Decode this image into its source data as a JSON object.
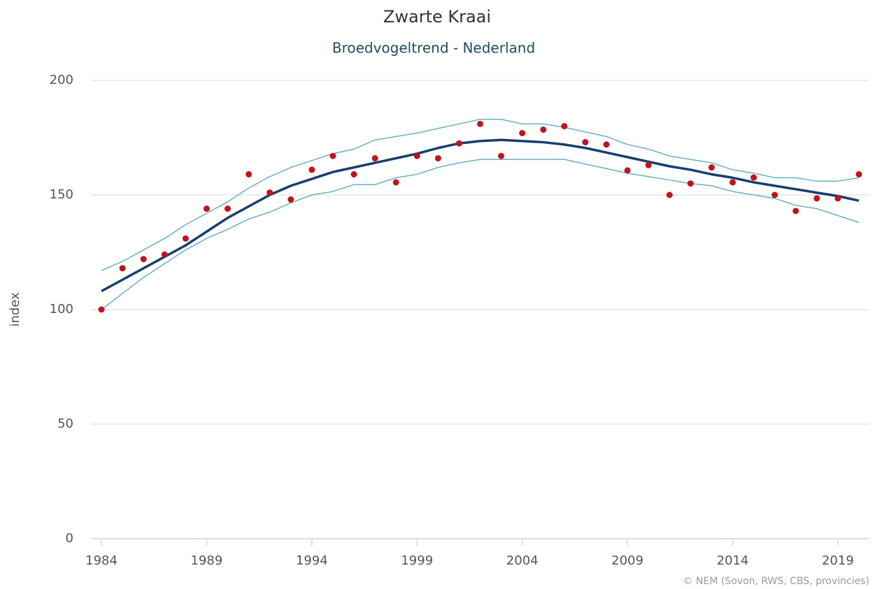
{
  "chart_data": {
    "type": "line",
    "title": "Zwarte Kraai",
    "subtitle": "Broedvogeltrend - Nederland",
    "y_label": "index",
    "credits": "© NEM (Sovon, RWS, CBS, provincies)",
    "x": [
      1984,
      1985,
      1986,
      1987,
      1988,
      1989,
      1990,
      1991,
      1992,
      1993,
      1994,
      1995,
      1996,
      1997,
      1998,
      1999,
      2000,
      2001,
      2002,
      2003,
      2004,
      2005,
      2006,
      2007,
      2008,
      2009,
      2010,
      2011,
      2012,
      2013,
      2014,
      2015,
      2016,
      2017,
      2018,
      2019,
      2020
    ],
    "series": [
      {
        "style": "line",
        "color": "#6aafc4",
        "width": 1.5,
        "values": [
          117,
          121,
          126,
          131,
          137,
          142,
          147,
          153,
          158,
          162,
          165,
          168,
          170,
          174,
          175.5,
          177,
          179,
          181,
          183,
          183,
          181,
          181,
          179.5,
          177.5,
          175.5,
          172,
          170,
          167,
          165.5,
          164,
          161,
          159.5,
          157.5,
          157.5,
          156,
          156,
          157.5
        ]
      },
      {
        "style": "line",
        "color": "#6aafc4",
        "width": 1.5,
        "values": [
          100,
          107,
          114,
          120,
          126,
          131,
          135,
          139.5,
          142.5,
          146.5,
          150,
          151.5,
          154.5,
          154.5,
          157.5,
          159,
          162,
          164,
          165.5,
          165.5,
          165.5,
          165.5,
          165.5,
          163.5,
          161.5,
          159.5,
          158,
          156.5,
          155,
          154,
          151.5,
          150,
          148.5,
          145.5,
          144,
          141,
          138
        ]
      },
      {
        "style": "line",
        "color": "#163f6e",
        "width": 3.5,
        "values": [
          108,
          113,
          118,
          123,
          128,
          134,
          140,
          145,
          150,
          154,
          157,
          160,
          162,
          164,
          166,
          168,
          170.5,
          172.5,
          173.5,
          174,
          173.5,
          173,
          172,
          170.5,
          168.5,
          166.5,
          164.5,
          162.5,
          161,
          159,
          157.5,
          155.5,
          154,
          152.5,
          151,
          149.5,
          147.5
        ]
      },
      {
        "style": "points",
        "color": "#c0141c",
        "width": 0,
        "values": [
          100,
          118,
          122,
          124,
          131,
          144,
          144,
          159,
          151,
          148,
          161,
          167,
          159,
          166,
          155.5,
          167,
          166,
          172.5,
          181,
          167,
          177,
          178.5,
          180,
          173,
          172,
          160.7,
          163,
          150,
          155,
          162,
          155.5,
          157.6,
          150,
          143,
          148.5,
          148.5,
          159
        ]
      }
    ],
    "xlim": [
      1983.5,
      2020.5
    ],
    "xticks": [
      1984,
      1989,
      1994,
      1999,
      2004,
      2009,
      2014,
      2019
    ],
    "ylim": [
      0,
      200
    ],
    "yticks": [
      0,
      50,
      100,
      150,
      200
    ],
    "grid": true
  }
}
